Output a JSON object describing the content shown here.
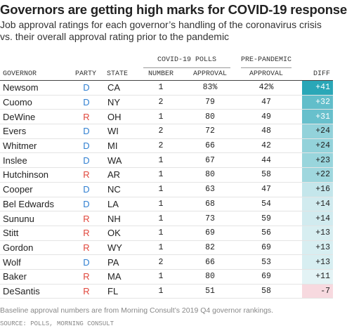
{
  "title": "Governors are getting high marks for COVID-19 response",
  "subtitle_line1": "Job approval ratings for each governor’s handling of the coronavirus crisis",
  "subtitle_line2": "vs. their overall approval rating prior to the pandemic",
  "group_headers": {
    "covid": "COVID-19 POLLS",
    "pre": "PRE-PANDEMIC"
  },
  "columns": {
    "governor": "GOVERNOR",
    "party": "PARTY",
    "state": "STATE",
    "number": "NUMBER",
    "approval": "APPROVAL",
    "pre_approval": "APPROVAL",
    "diff": "DIFF"
  },
  "colors": {
    "democrat": "#2f7fd1",
    "republican": "#e0453a",
    "positive_max": "#2aa7b7",
    "positive_min": "#e3f3f5",
    "negative": "#f7d9df"
  },
  "rows": [
    {
      "governor": "Newsom",
      "party": "D",
      "state": "CA",
      "number": "1",
      "approval": "83%",
      "pre": "42%",
      "diff": "+41",
      "diff_value": 41
    },
    {
      "governor": "Cuomo",
      "party": "D",
      "state": "NY",
      "number": "2",
      "approval": "79",
      "pre": "47",
      "diff": "+32",
      "diff_value": 32
    },
    {
      "governor": "DeWine",
      "party": "R",
      "state": "OH",
      "number": "1",
      "approval": "80",
      "pre": "49",
      "diff": "+31",
      "diff_value": 31
    },
    {
      "governor": "Evers",
      "party": "D",
      "state": "WI",
      "number": "2",
      "approval": "72",
      "pre": "48",
      "diff": "+24",
      "diff_value": 24
    },
    {
      "governor": "Whitmer",
      "party": "D",
      "state": "MI",
      "number": "2",
      "approval": "66",
      "pre": "42",
      "diff": "+24",
      "diff_value": 24
    },
    {
      "governor": "Inslee",
      "party": "D",
      "state": "WA",
      "number": "1",
      "approval": "67",
      "pre": "44",
      "diff": "+23",
      "diff_value": 23
    },
    {
      "governor": "Hutchinson",
      "party": "R",
      "state": "AR",
      "number": "1",
      "approval": "80",
      "pre": "58",
      "diff": "+22",
      "diff_value": 22
    },
    {
      "governor": "Cooper",
      "party": "D",
      "state": "NC",
      "number": "1",
      "approval": "63",
      "pre": "47",
      "diff": "+16",
      "diff_value": 16
    },
    {
      "governor": "Bel Edwards",
      "party": "D",
      "state": "LA",
      "number": "1",
      "approval": "68",
      "pre": "54",
      "diff": "+14",
      "diff_value": 14
    },
    {
      "governor": "Sununu",
      "party": "R",
      "state": "NH",
      "number": "1",
      "approval": "73",
      "pre": "59",
      "diff": "+14",
      "diff_value": 14
    },
    {
      "governor": "Stitt",
      "party": "R",
      "state": "OK",
      "number": "1",
      "approval": "69",
      "pre": "56",
      "diff": "+13",
      "diff_value": 13
    },
    {
      "governor": "Gordon",
      "party": "R",
      "state": "WY",
      "number": "1",
      "approval": "82",
      "pre": "69",
      "diff": "+13",
      "diff_value": 13
    },
    {
      "governor": "Wolf",
      "party": "D",
      "state": "PA",
      "number": "2",
      "approval": "66",
      "pre": "53",
      "diff": "+13",
      "diff_value": 13
    },
    {
      "governor": "Baker",
      "party": "R",
      "state": "MA",
      "number": "1",
      "approval": "80",
      "pre": "69",
      "diff": "+11",
      "diff_value": 11
    },
    {
      "governor": "DeSantis",
      "party": "R",
      "state": "FL",
      "number": "1",
      "approval": "51",
      "pre": "58",
      "diff": "-7",
      "diff_value": -7
    }
  ],
  "footnote": "Baseline approval numbers are from Morning Consult’s 2019 Q4 governor rankings.",
  "source": "SOURCE: POLLS, MORNING CONSULT"
}
